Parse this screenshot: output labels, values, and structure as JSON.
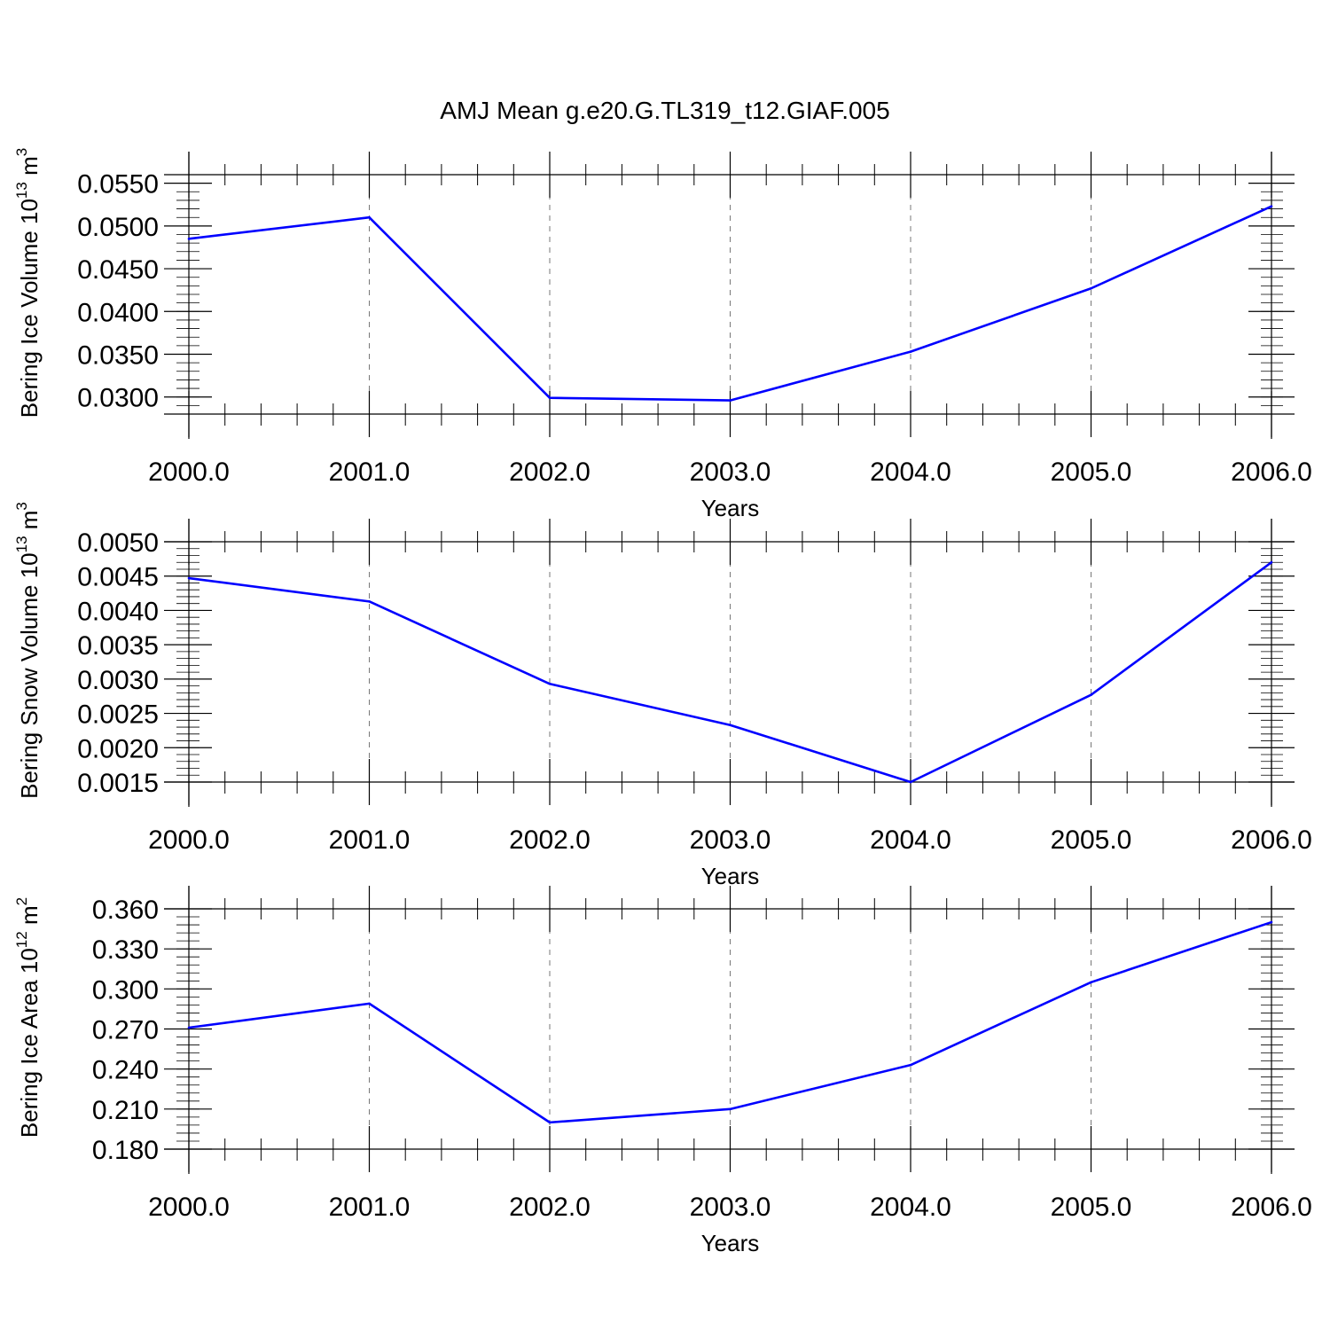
{
  "title": "AMJ Mean g.e20.G.TL319_t12.GIAF.005",
  "chart_data": [
    {
      "type": "line",
      "x": [
        2000,
        2001,
        2002,
        2003,
        2004,
        2005,
        2006
      ],
      "xlim": [
        2000,
        2006
      ],
      "x_ticks": [
        2000,
        2001,
        2002,
        2003,
        2004,
        2005,
        2006
      ],
      "x_tick_labels": [
        "2000.0",
        "2001.0",
        "2002.0",
        "2003.0",
        "2004.0",
        "2005.0",
        "2006.0"
      ],
      "xlabel": "Years",
      "ylabel_text": "Bering Ice Volume 10",
      "ylabel_exp": "13",
      "ylabel_unit": " m",
      "ylabel_unit_exp": "3",
      "ylim": [
        0.028,
        0.056
      ],
      "y_ticks": [
        0.03,
        0.035,
        0.04,
        0.045,
        0.05,
        0.055
      ],
      "y_tick_labels": [
        "0.0300",
        "0.0350",
        "0.0400",
        "0.0450",
        "0.0500",
        "0.0550"
      ],
      "y_minor_step": 0.001,
      "grid": "x-dashed",
      "color": "#0000ff",
      "values": [
        0.0485,
        0.051,
        0.0299,
        0.0296,
        0.0353,
        0.0427,
        0.0523
      ]
    },
    {
      "type": "line",
      "x": [
        2000,
        2001,
        2002,
        2003,
        2004,
        2005,
        2006
      ],
      "xlim": [
        2000,
        2006
      ],
      "x_ticks": [
        2000,
        2001,
        2002,
        2003,
        2004,
        2005,
        2006
      ],
      "x_tick_labels": [
        "2000.0",
        "2001.0",
        "2002.0",
        "2003.0",
        "2004.0",
        "2005.0",
        "2006.0"
      ],
      "xlabel": "Years",
      "ylabel_text": "Bering Snow Volume 10",
      "ylabel_exp": "13",
      "ylabel_unit": " m",
      "ylabel_unit_exp": "3",
      "ylim": [
        0.0015,
        0.005
      ],
      "y_ticks": [
        0.0015,
        0.002,
        0.0025,
        0.003,
        0.0035,
        0.004,
        0.0045,
        0.005
      ],
      "y_tick_labels": [
        "0.0015",
        "0.0020",
        "0.0025",
        "0.0030",
        "0.0035",
        "0.0040",
        "0.0045",
        "0.0050"
      ],
      "y_minor_step": 0.0001,
      "grid": "x-dashed",
      "color": "#0000ff",
      "values": [
        0.00447,
        0.00413,
        0.00293,
        0.00233,
        0.0015,
        0.00277,
        0.0047
      ]
    },
    {
      "type": "line",
      "x": [
        2000,
        2001,
        2002,
        2003,
        2004,
        2005,
        2006
      ],
      "xlim": [
        2000,
        2006
      ],
      "x_ticks": [
        2000,
        2001,
        2002,
        2003,
        2004,
        2005,
        2006
      ],
      "x_tick_labels": [
        "2000.0",
        "2001.0",
        "2002.0",
        "2003.0",
        "2004.0",
        "2005.0",
        "2006.0"
      ],
      "xlabel": "Years",
      "ylabel_text": "Bering Ice Area 10",
      "ylabel_exp": "12",
      "ylabel_unit": " m",
      "ylabel_unit_exp": "2",
      "ylim": [
        0.18,
        0.36
      ],
      "y_ticks": [
        0.18,
        0.21,
        0.24,
        0.27,
        0.3,
        0.33,
        0.36
      ],
      "y_tick_labels": [
        "0.180",
        "0.210",
        "0.240",
        "0.270",
        "0.300",
        "0.330",
        "0.360"
      ],
      "y_minor_step": 0.006,
      "grid": "x-dashed",
      "color": "#0000ff",
      "values": [
        0.271,
        0.289,
        0.2,
        0.21,
        0.243,
        0.305,
        0.35
      ]
    }
  ]
}
